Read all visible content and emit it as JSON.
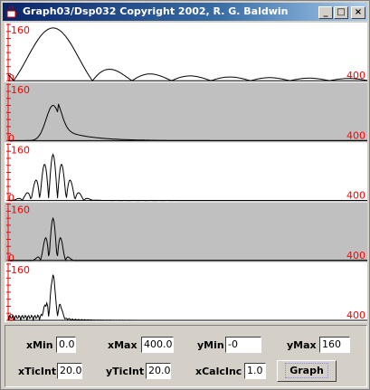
{
  "window": {
    "title": "Graph03/Dsp032 Copyright 2002, R. G. Baldwin"
  },
  "title_buttons": {
    "minimize": "_",
    "maximize": "□",
    "close": "×"
  },
  "colors": {
    "axis": "#ff0000",
    "label": "#ff0000",
    "curve": "#000000",
    "panel_white": "#ffffff",
    "panel_gray": "#c0c0c0"
  },
  "panels": [
    {
      "ymax_label": "160",
      "xmin_label": "0",
      "xmax_label": "400",
      "background": "white"
    },
    {
      "ymax_label": "160",
      "xmin_label": "0",
      "xmax_label": "400",
      "background": "gray"
    },
    {
      "ymax_label": "160",
      "xmin_label": "0",
      "xmax_label": "400",
      "background": "white"
    },
    {
      "ymax_label": "160",
      "xmin_label": "0",
      "xmax_label": "400",
      "background": "gray"
    },
    {
      "ymax_label": "160",
      "xmin_label": "0",
      "xmax_label": "400",
      "background": "white"
    }
  ],
  "controls": {
    "xmin": {
      "label": "xMin",
      "value": "0.0"
    },
    "xmax": {
      "label": "xMax",
      "value": "400.0"
    },
    "ymin": {
      "label": "yMin",
      "value": "-0"
    },
    "ymax": {
      "label": "yMax",
      "value": "160"
    },
    "xticint": {
      "label": "xTicInt",
      "value": "20.0"
    },
    "yticint": {
      "label": "yTicInt",
      "value": "20.0"
    },
    "xcalcinc": {
      "label": "xCalcInc",
      "value": "1.0"
    },
    "graph_button": "Graph"
  }
}
